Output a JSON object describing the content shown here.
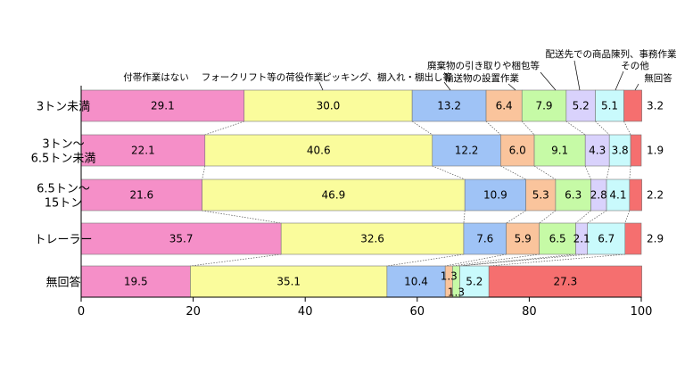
{
  "chart_data": {
    "type": "bar",
    "orientation": "horizontal",
    "stacked": true,
    "categories": [
      [
        "3トン未満"
      ],
      [
        "3トン～",
        "6.5トン未満"
      ],
      [
        "6.5トン～",
        "15トン"
      ],
      [
        "トレーラー"
      ],
      [
        "無回答"
      ]
    ],
    "series": [
      {
        "name": "付帯作業はない",
        "color": "#F58FC8",
        "values": [
          29.1,
          22.1,
          21.6,
          35.7,
          19.5
        ]
      },
      {
        "name": "フォークリフト等の荷役作業",
        "color": "#FAFC9C",
        "values": [
          30.0,
          40.6,
          46.9,
          32.6,
          35.1
        ]
      },
      {
        "name": "ピッキング、棚入れ・棚出し等",
        "color": "#9FC3F6",
        "values": [
          13.2,
          12.2,
          10.9,
          7.6,
          10.4
        ]
      },
      {
        "name": "輸送物の設置作業",
        "color": "#FAC49C",
        "values": [
          6.4,
          6.0,
          5.3,
          5.9,
          1.3
        ]
      },
      {
        "name": "廃棄物の引き取りや梱包等",
        "color": "#C6FAA6",
        "values": [
          7.9,
          9.1,
          6.3,
          6.5,
          1.3
        ]
      },
      {
        "name": "配送先での商品陳列、事務作業",
        "color": "#D9D2FC",
        "values": [
          5.2,
          4.3,
          2.8,
          2.1,
          0
        ]
      },
      {
        "name": "その他",
        "color": "#C9FAFC",
        "values": [
          5.1,
          3.8,
          4.1,
          6.7,
          5.2
        ]
      },
      {
        "name": "無回答",
        "color": "#F56F6F",
        "values": [
          3.2,
          1.9,
          2.2,
          2.9,
          27.3
        ]
      }
    ],
    "value_labels": [
      [
        "29.1",
        "30.0",
        "13.2",
        "6.4",
        "7.9",
        "5.2",
        "5.1",
        "3.2"
      ],
      [
        "22.1",
        "40.6",
        "12.2",
        "6.0",
        "9.1",
        "4.3",
        "3.8",
        "1.9"
      ],
      [
        "21.6",
        "46.9",
        "10.9",
        "5.3",
        "6.3",
        "2.8",
        "4.1",
        "2.2"
      ],
      [
        "35.7",
        "32.6",
        "7.6",
        "5.9",
        "6.5",
        "2.1",
        "6.7",
        "2.9"
      ],
      [
        "19.5",
        "35.1",
        "10.4",
        "1.3",
        "1.3",
        "",
        "5.2",
        "27.3"
      ]
    ],
    "xlim": [
      0,
      100
    ],
    "xticks": [
      0,
      20,
      40,
      60,
      80,
      100
    ],
    "xlabel": "",
    "ylabel": "",
    "title": "",
    "grid": false,
    "connector_lines": true
  }
}
